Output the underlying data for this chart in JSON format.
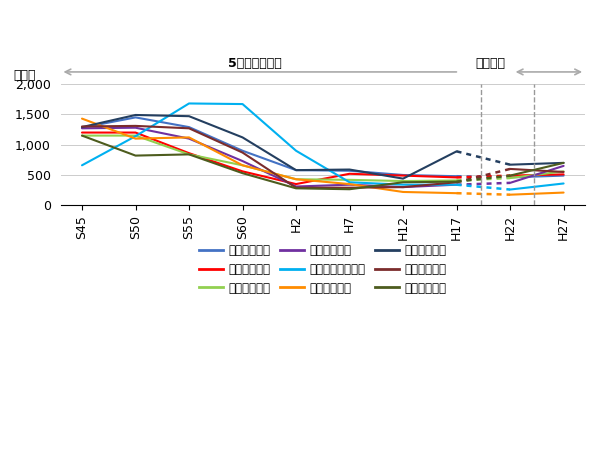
{
  "x_tick_labels": [
    "S45",
    "S50",
    "S55",
    "S60",
    "H2",
    "H7",
    "H12",
    "H17",
    "H22",
    "H27"
  ],
  "series": [
    {
      "name": "津雲台小学校",
      "color": "#4472C4",
      "vals": [
        1280,
        1450,
        1290,
        900,
        580,
        570,
        500,
        480,
        460,
        490
      ]
    },
    {
      "name": "高野台小学校",
      "color": "#FF0000",
      "vals": [
        1200,
        1200,
        860,
        560,
        350,
        520,
        490,
        460,
        490,
        510
      ]
    },
    {
      "name": "佐竹台小学校",
      "color": "#92D050",
      "vals": [
        1150,
        1150,
        840,
        660,
        430,
        420,
        400,
        410,
        450,
        560
      ]
    },
    {
      "name": "桃山台小学校",
      "color": "#7030A0",
      "vals": [
        1270,
        1280,
        1100,
        730,
        310,
        340,
        300,
        340,
        370,
        650
      ]
    },
    {
      "name": "千里たけみ小学校",
      "color": "#00B0F0",
      "vals": [
        660,
        1140,
        1680,
        1670,
        900,
        380,
        340,
        340,
        260,
        360
      ]
    },
    {
      "name": "青山台小学校",
      "color": "#FF8C00",
      "vals": [
        1430,
        1100,
        1120,
        660,
        430,
        350,
        220,
        200,
        175,
        210
      ]
    },
    {
      "name": "藤白台小学校",
      "color": "#243F60",
      "vals": [
        1290,
        1490,
        1470,
        1120,
        580,
        590,
        440,
        890,
        670,
        700
      ]
    },
    {
      "name": "古江台小学校",
      "color": "#7B2C2C",
      "vals": [
        1300,
        1310,
        1270,
        870,
        290,
        290,
        300,
        380,
        600,
        550
      ]
    },
    {
      "name": "北千里小学校",
      "color": "#4D5C1E",
      "vals": [
        1150,
        820,
        840,
        530,
        280,
        265,
        380,
        390,
        490,
        700
      ]
    }
  ],
  "ylim": [
    0,
    2000
  ],
  "yticks": [
    0,
    500,
    1000,
    1500,
    2000
  ],
  "ylabel": "（人）",
  "annotation1": "5年単位で抜出",
  "annotation2": "毎年抜出",
  "background_color": "#FFFFFF",
  "dotted_from": 7,
  "dotted_to": 8,
  "vline1": 7.45,
  "vline2": 8.45,
  "legend_order": [
    "津雲台小学校",
    "高野台小学校",
    "佐竹台小学校",
    "桃山台小学校",
    "千里たけみ小学校",
    "青山台小学校",
    "藤白台小学校",
    "古江台小学校",
    "北千里小学校"
  ]
}
